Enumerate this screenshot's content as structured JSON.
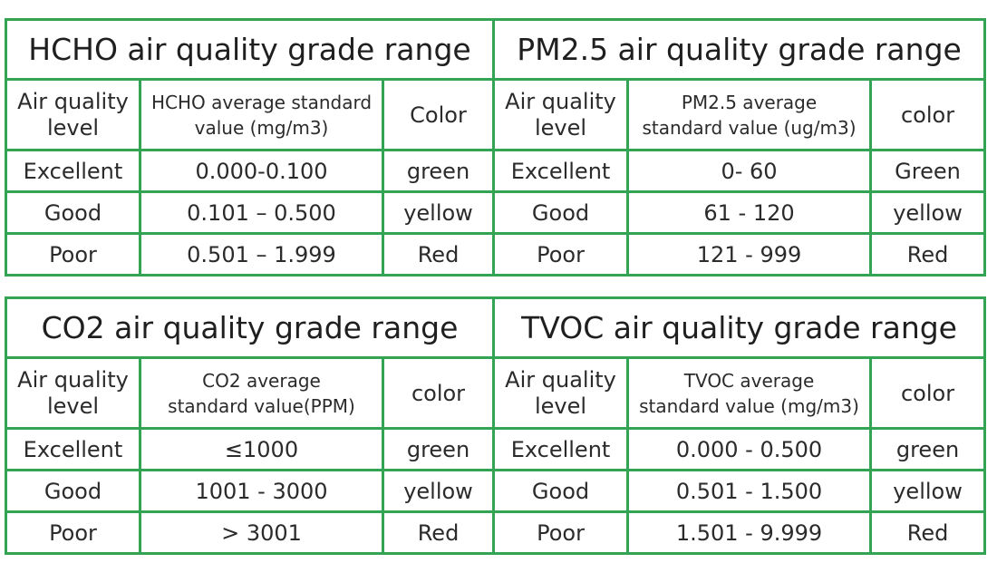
{
  "tables": {
    "top": {
      "left": {
        "title": "HCHO air quality grade range",
        "headers": {
          "level_line1": "Air quality",
          "level_line2": "level",
          "value_line1": "HCHO average standard",
          "value_line2": "value (mg/m3)",
          "color": "Color"
        },
        "rows": [
          {
            "level": "Excellent",
            "value": "0.000-0.100",
            "color": "green"
          },
          {
            "level": "Good",
            "value": "0.101 – 0.500",
            "color": "yellow"
          },
          {
            "level": "Poor",
            "value": "0.501 – 1.999",
            "color": "Red"
          }
        ]
      },
      "right": {
        "title": "PM2.5 air quality grade range",
        "headers": {
          "level_line1": "Air quality",
          "level_line2": "level",
          "value_line1": "PM2.5 average",
          "value_line2": "standard value (ug/m3)",
          "color": "color"
        },
        "rows": [
          {
            "level": "Excellent",
            "value": "0- 60",
            "color": "Green"
          },
          {
            "level": "Good",
            "value": "61 - 120",
            "color": "yellow"
          },
          {
            "level": "Poor",
            "value": "121 - 999",
            "color": "Red"
          }
        ]
      }
    },
    "bottom": {
      "left": {
        "title": "CO2 air quality grade range",
        "headers": {
          "level_line1": "Air quality",
          "level_line2": "level",
          "value_line1": "CO2  average",
          "value_line2": "standard value(PPM)",
          "color": "color"
        },
        "rows": [
          {
            "level": "Excellent",
            "value": "≤1000",
            "color": "green"
          },
          {
            "level": "Good",
            "value": "1001 - 3000",
            "color": "yellow"
          },
          {
            "level": "Poor",
            "value": "> 3001",
            "color": "Red"
          }
        ]
      },
      "right": {
        "title": "TVOC air quality grade range",
        "headers": {
          "level_line1": "Air quality",
          "level_line2": "level",
          "value_line1": "TVOC average",
          "value_line2": "standard value (mg/m3)",
          "color": "color"
        },
        "rows": [
          {
            "level": "Excellent",
            "value": "0.000 - 0.500",
            "color": "green"
          },
          {
            "level": "Good",
            "value": "0.501 - 1.500",
            "color": "yellow"
          },
          {
            "level": "Poor",
            "value": "1.501 - 9.999",
            "color": "Red"
          }
        ]
      }
    }
  },
  "colors": {
    "border": "#33a453",
    "text": "#2b2b2b",
    "background": "#ffffff"
  }
}
